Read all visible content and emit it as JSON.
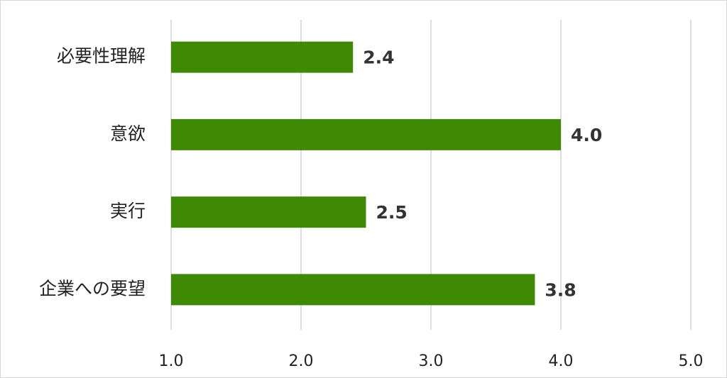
{
  "chart_data": {
    "type": "bar",
    "categories": [
      "必要性理解",
      "意欲",
      "実行",
      "企業への要望"
    ],
    "values": [
      2.4,
      4.0,
      2.5,
      3.8
    ],
    "value_labels": [
      "2.4",
      "4.0",
      "2.5",
      "3.8"
    ],
    "color": "#3f8a04",
    "xlim": [
      1,
      5
    ],
    "xticks": [
      {
        "value": 1,
        "label": "1.0"
      },
      {
        "value": 2,
        "label": "2.0"
      },
      {
        "value": 3,
        "label": "3.0"
      },
      {
        "value": 4,
        "label": "4.0"
      },
      {
        "value": 5,
        "label": "5.0"
      }
    ],
    "grid": true
  }
}
